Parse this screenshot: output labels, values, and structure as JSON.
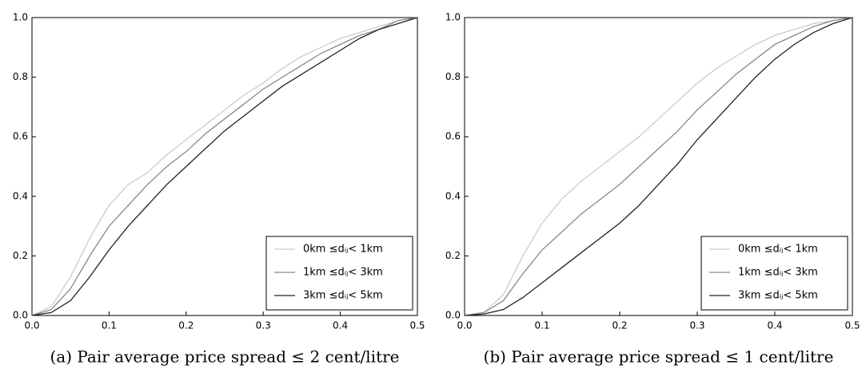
{
  "chart_data": [
    {
      "type": "line",
      "step": true,
      "caption": "(a) Pair average price spread ≤ 2 cent/litre",
      "x": [
        0,
        0.025,
        0.05,
        0.075,
        0.1,
        0.125,
        0.15,
        0.175,
        0.2,
        0.225,
        0.25,
        0.275,
        0.3,
        0.325,
        0.35,
        0.375,
        0.4,
        0.425,
        0.45,
        0.475,
        0.5
      ],
      "series": [
        {
          "name": "0km ≤dᵢⱼ< 1km",
          "color": "#cccccc",
          "values": [
            0,
            0.03,
            0.13,
            0.26,
            0.37,
            0.44,
            0.48,
            0.54,
            0.59,
            0.64,
            0.69,
            0.74,
            0.78,
            0.83,
            0.87,
            0.9,
            0.93,
            0.95,
            0.97,
            0.99,
            1.0
          ]
        },
        {
          "name": "1km ≤dᵢⱼ< 3km",
          "color": "#888888",
          "values": [
            0,
            0.02,
            0.09,
            0.2,
            0.3,
            0.37,
            0.44,
            0.5,
            0.55,
            0.61,
            0.66,
            0.71,
            0.76,
            0.8,
            0.84,
            0.88,
            0.91,
            0.94,
            0.96,
            0.99,
            1.0
          ]
        },
        {
          "name": "3km ≤dᵢⱼ< 5km",
          "color": "#222222",
          "values": [
            0,
            0.01,
            0.05,
            0.13,
            0.22,
            0.3,
            0.37,
            0.44,
            0.5,
            0.56,
            0.62,
            0.67,
            0.72,
            0.77,
            0.81,
            0.85,
            0.89,
            0.93,
            0.96,
            0.98,
            1.0
          ]
        }
      ],
      "xlim": [
        0,
        0.5
      ],
      "ylim": [
        0,
        1
      ],
      "xticks": [
        {
          "value": 0,
          "label": "0.0"
        },
        0.1,
        0.2,
        0.3,
        0.4,
        0.5
      ],
      "yticks": [
        {
          "value": 0,
          "label": "0.0"
        },
        0.2,
        0.4,
        0.6,
        0.8,
        {
          "value": 1,
          "label": "1.0"
        }
      ],
      "legend": "lower right"
    },
    {
      "type": "line",
      "step": true,
      "caption": "(b) Pair average price spread ≤ 1 cent/litre",
      "x": [
        0,
        0.025,
        0.05,
        0.075,
        0.1,
        0.125,
        0.15,
        0.175,
        0.2,
        0.225,
        0.25,
        0.275,
        0.3,
        0.325,
        0.35,
        0.375,
        0.4,
        0.425,
        0.45,
        0.475,
        0.5
      ],
      "series": [
        {
          "name": "0km ≤dᵢⱼ< 1km",
          "color": "#cccccc",
          "values": [
            0,
            0.01,
            0.07,
            0.2,
            0.31,
            0.39,
            0.45,
            0.5,
            0.55,
            0.6,
            0.66,
            0.72,
            0.78,
            0.83,
            0.87,
            0.91,
            0.94,
            0.96,
            0.98,
            0.99,
            1.0
          ]
        },
        {
          "name": "1km ≤dᵢⱼ< 3km",
          "color": "#888888",
          "values": [
            0,
            0.01,
            0.05,
            0.14,
            0.22,
            0.28,
            0.34,
            0.39,
            0.44,
            0.5,
            0.56,
            0.62,
            0.69,
            0.75,
            0.81,
            0.86,
            0.91,
            0.94,
            0.97,
            0.99,
            1.0
          ]
        },
        {
          "name": "3km ≤dᵢⱼ< 5km",
          "color": "#222222",
          "values": [
            0,
            0.005,
            0.02,
            0.06,
            0.11,
            0.16,
            0.21,
            0.26,
            0.31,
            0.37,
            0.44,
            0.51,
            0.59,
            0.66,
            0.73,
            0.8,
            0.86,
            0.91,
            0.95,
            0.98,
            1.0
          ]
        }
      ],
      "xlim": [
        0,
        0.5
      ],
      "ylim": [
        0,
        1
      ],
      "xticks": [
        {
          "value": 0,
          "label": "0.0"
        },
        0.1,
        0.2,
        0.3,
        0.4,
        0.5
      ],
      "yticks": [
        {
          "value": 0,
          "label": "0.0"
        },
        0.2,
        0.4,
        0.6,
        0.8,
        {
          "value": 1,
          "label": "1.0"
        }
      ],
      "legend": "lower right"
    }
  ]
}
